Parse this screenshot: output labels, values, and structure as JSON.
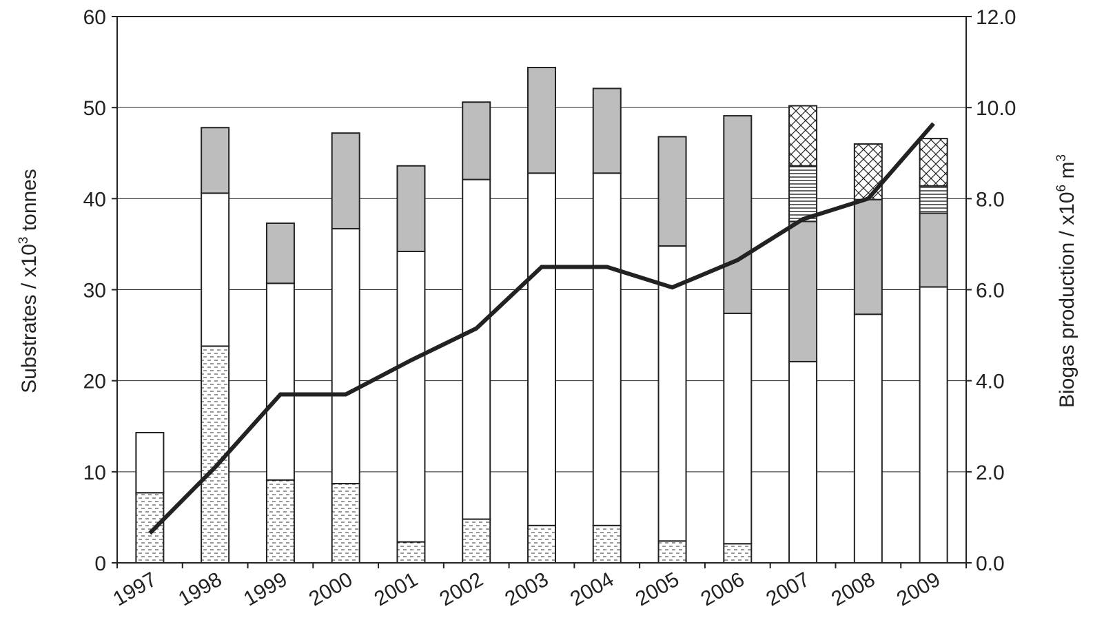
{
  "chart_data": {
    "type": "bar",
    "stacked": true,
    "categories": [
      "1997",
      "1998",
      "1999",
      "2000",
      "2001",
      "2002",
      "2003",
      "2004",
      "2005",
      "2006",
      "2007",
      "2008",
      "2009"
    ],
    "series": [
      {
        "values": [
          7.7,
          23.8,
          9.1,
          8.7,
          2.3,
          4.8,
          4.1,
          4.1,
          2.4,
          2.1,
          0,
          0,
          0
        ],
        "pattern": "dash"
      },
      {
        "values": [
          6.6,
          16.8,
          21.6,
          28.0,
          31.9,
          37.3,
          38.7,
          38.7,
          32.4,
          25.3,
          22.1,
          27.3,
          30.3
        ],
        "pattern": "white"
      },
      {
        "values": [
          0,
          7.2,
          6.6,
          10.5,
          9.4,
          8.5,
          11.6,
          9.3,
          12.0,
          21.7,
          15.4,
          12.6,
          8.1
        ],
        "pattern": "gray"
      },
      {
        "values": [
          0,
          0,
          0,
          0,
          0,
          0,
          0,
          0,
          0,
          0,
          6.1,
          0,
          3.0
        ],
        "pattern": "hstripe"
      },
      {
        "values": [
          0,
          0,
          0,
          0,
          0,
          0,
          0,
          0,
          0,
          0,
          6.6,
          6.1,
          5.2
        ],
        "pattern": "crosshatch"
      }
    ],
    "line": {
      "axis": "right",
      "values": [
        0.65,
        2.1,
        3.7,
        3.7,
        4.45,
        5.15,
        6.5,
        6.5,
        6.05,
        6.65,
        7.55,
        8.0,
        9.65
      ]
    },
    "y_left": {
      "label_main": "Substrates / x10",
      "label_sup": "3",
      "label_tail": " tonnes",
      "min": 0,
      "max": 60,
      "ticks": [
        "0",
        "10",
        "20",
        "30",
        "40",
        "50",
        "60"
      ],
      "tick_values": [
        0,
        10,
        20,
        30,
        40,
        50,
        60
      ]
    },
    "y_right": {
      "label_main": "Biogas production / x10",
      "label_sup": "6",
      "label_tail": " m",
      "label_sup2": "3",
      "min": 0,
      "max": 12,
      "ticks": [
        "0.0",
        "2.0",
        "4.0",
        "6.0",
        "8.0",
        "10.0",
        "12.0"
      ],
      "tick_values": [
        0,
        2,
        4,
        6,
        8,
        10,
        12
      ]
    },
    "grid": true,
    "legend": "none"
  },
  "colors": {
    "gray_fill": "#bdbdbd",
    "line": "#222222",
    "bar_outline": "#222222"
  }
}
